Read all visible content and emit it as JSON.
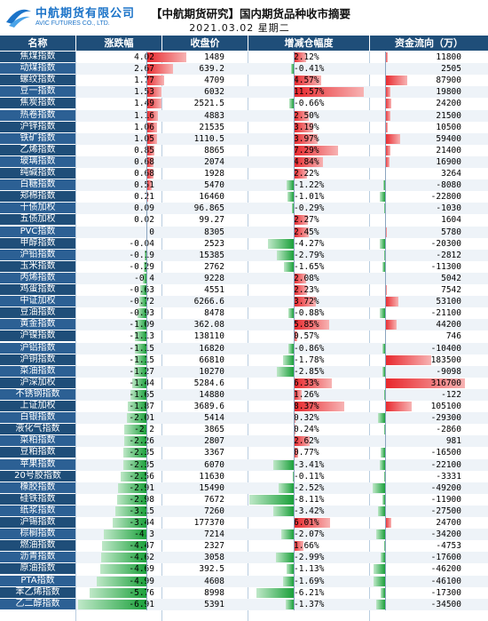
{
  "header": {
    "company_cn": "中航期货有限公司",
    "company_en": "AVIC FUTURES CO., LTD.",
    "title": "【中航期货研究】国内期货品种收市摘要",
    "subtitle": "2021.03.02 星期二"
  },
  "colors": {
    "header_bg": "#1f4e79",
    "name_bg_even": "#1f4e79",
    "name_bg_odd": "#2c6094",
    "positive": "#e8262b",
    "negative": "#1aa03a",
    "row_alt": "#eef3f8"
  },
  "columns": [
    "名称",
    "涨跌幅",
    "收盘价",
    "增减仓幅度",
    "资金流向（万）"
  ],
  "chart_data": {
    "type": "table",
    "scales": {
      "change_abs_max": 7.0,
      "oi_abs_max": 12.0,
      "flow_abs_max": 316700
    },
    "rows": [
      {
        "name": "焦煤指数",
        "change": "4.02",
        "close": "1489",
        "oi": "2.12%",
        "flow": "11800"
      },
      {
        "name": "动煤指数",
        "change": "2.67",
        "close": "639.2",
        "oi": "-0.41%",
        "flow": "2505"
      },
      {
        "name": "螺纹指数",
        "change": "1.77",
        "close": "4709",
        "oi": "4.57%",
        "flow": "87900"
      },
      {
        "name": "豆一指数",
        "change": "1.53",
        "close": "6032",
        "oi": "11.57%",
        "flow": "19800"
      },
      {
        "name": "焦炭指数",
        "change": "1.49",
        "close": "2521.5",
        "oi": "-0.66%",
        "flow": "24200"
      },
      {
        "name": "热卷指数",
        "change": "1.16",
        "close": "4883",
        "oi": "2.50%",
        "flow": "21500"
      },
      {
        "name": "沪锌指数",
        "change": "1.06",
        "close": "21535",
        "oi": "3.19%",
        "flow": "10500"
      },
      {
        "name": "铁矿指数",
        "change": "1.05",
        "close": "1110.5",
        "oi": "3.97%",
        "flow": "59400"
      },
      {
        "name": "乙烯指数",
        "change": "0.85",
        "close": "8865",
        "oi": "7.29%",
        "flow": "21400"
      },
      {
        "name": "玻璃指数",
        "change": "0.68",
        "close": "2074",
        "oi": "4.84%",
        "flow": "16900"
      },
      {
        "name": "纯碱指数",
        "change": "0.68",
        "close": "1928",
        "oi": "2.22%",
        "flow": "3264"
      },
      {
        "name": "白糖指数",
        "change": "0.51",
        "close": "5470",
        "oi": "-1.22%",
        "flow": "-8080"
      },
      {
        "name": "郑棉指数",
        "change": "0.21",
        "close": "16460",
        "oi": "-1.01%",
        "flow": "-22800"
      },
      {
        "name": "十债加权",
        "change": "0.09",
        "close": "96.865",
        "oi": "-0.29%",
        "flow": "-1030"
      },
      {
        "name": "五债加权",
        "change": "0.02",
        "close": "99.27",
        "oi": "2.27%",
        "flow": "1604"
      },
      {
        "name": "PVC指数",
        "change": "0",
        "close": "8305",
        "oi": "2.45%",
        "flow": "5780"
      },
      {
        "name": "甲醇指数",
        "change": "-0.04",
        "close": "2523",
        "oi": "-4.27%",
        "flow": "-20300"
      },
      {
        "name": "沪铅指数",
        "change": "-0.19",
        "close": "15385",
        "oi": "-2.79%",
        "flow": "-2812"
      },
      {
        "name": "玉米指数",
        "change": "-0.29",
        "close": "2762",
        "oi": "-1.65%",
        "flow": "-11300"
      },
      {
        "name": "丙烯指数",
        "change": "-0.4",
        "close": "9228",
        "oi": "2.08%",
        "flow": "5042"
      },
      {
        "name": "鸡蛋指数",
        "change": "-0.63",
        "close": "4551",
        "oi": "2.23%",
        "flow": "7542"
      },
      {
        "name": "中证加权",
        "change": "-0.72",
        "close": "6266.6",
        "oi": "3.72%",
        "flow": "53100"
      },
      {
        "name": "豆油指数",
        "change": "-0.93",
        "close": "8478",
        "oi": "-0.88%",
        "flow": "-21100"
      },
      {
        "name": "黄金指数",
        "change": "-1.09",
        "close": "362.08",
        "oi": "5.85%",
        "flow": "44200"
      },
      {
        "name": "沪镍指数",
        "change": "-1.13",
        "close": "138110",
        "oi": "0.57%",
        "flow": "746"
      },
      {
        "name": "沪铝指数",
        "change": "-1.15",
        "close": "16820",
        "oi": "-0.86%",
        "flow": "-10400"
      },
      {
        "name": "沪铜指数",
        "change": "-1.15",
        "close": "66810",
        "oi": "-1.78%",
        "flow": "183500"
      },
      {
        "name": "菜油指数",
        "change": "-1.27",
        "close": "10270",
        "oi": "-2.85%",
        "flow": "-9098"
      },
      {
        "name": "沪深加权",
        "change": "-1.44",
        "close": "5284.6",
        "oi": "6.33%",
        "flow": "316700"
      },
      {
        "name": "不锈钢指数",
        "change": "-1.65",
        "close": "14880",
        "oi": "1.26%",
        "flow": "-122"
      },
      {
        "name": "上证加权",
        "change": "-1.87",
        "close": "3689.6",
        "oi": "8.37%",
        "flow": "105100"
      },
      {
        "name": "白银指数",
        "change": "-2.01",
        "close": "5414",
        "oi": "0.32%",
        "flow": "-29300"
      },
      {
        "name": "液化气指数",
        "change": "-2.2",
        "close": "3865",
        "oi": "0.24%",
        "flow": "-2860"
      },
      {
        "name": "菜粕指数",
        "change": "-2.26",
        "close": "2807",
        "oi": "2.62%",
        "flow": "981"
      },
      {
        "name": "豆粕指数",
        "change": "-2.35",
        "close": "3367",
        "oi": "0.77%",
        "flow": "-16500"
      },
      {
        "name": "苹果指数",
        "change": "-2.35",
        "close": "6070",
        "oi": "-3.41%",
        "flow": "-22100"
      },
      {
        "name": "20号胶指数",
        "change": "-2.56",
        "close": "11630",
        "oi": "-0.11%",
        "flow": "-3331"
      },
      {
        "name": "橡胶指数",
        "change": "-2.91",
        "close": "15490",
        "oi": "-2.52%",
        "flow": "-49200"
      },
      {
        "name": "硅铁指数",
        "change": "-2.98",
        "close": "7672",
        "oi": "-8.11%",
        "flow": "-11900"
      },
      {
        "name": "纸浆指数",
        "change": "-3.15",
        "close": "7260",
        "oi": "-3.42%",
        "flow": "-27500"
      },
      {
        "name": "沪锡指数",
        "change": "-3.44",
        "close": "177370",
        "oi": "6.01%",
        "flow": "24700"
      },
      {
        "name": "棕榈指数",
        "change": "-4.3",
        "close": "7214",
        "oi": "-2.07%",
        "flow": "-34200"
      },
      {
        "name": "燃油指数",
        "change": "-4.47",
        "close": "2327",
        "oi": "1.66%",
        "flow": "-4753"
      },
      {
        "name": "沥青指数",
        "change": "-4.62",
        "close": "3058",
        "oi": "-2.99%",
        "flow": "-17600"
      },
      {
        "name": "原油指数",
        "change": "-4.69",
        "close": "392.5",
        "oi": "-1.13%",
        "flow": "-46200"
      },
      {
        "name": "PTA指数",
        "change": "-4.99",
        "close": "4608",
        "oi": "-1.69%",
        "flow": "-46100"
      },
      {
        "name": "苯乙烯指数",
        "change": "-5.76",
        "close": "8998",
        "oi": "-6.21%",
        "flow": "-17300"
      },
      {
        "name": "乙二醇指数",
        "change": "-6.91",
        "close": "5391",
        "oi": "-1.37%",
        "flow": "-34500"
      }
    ]
  }
}
